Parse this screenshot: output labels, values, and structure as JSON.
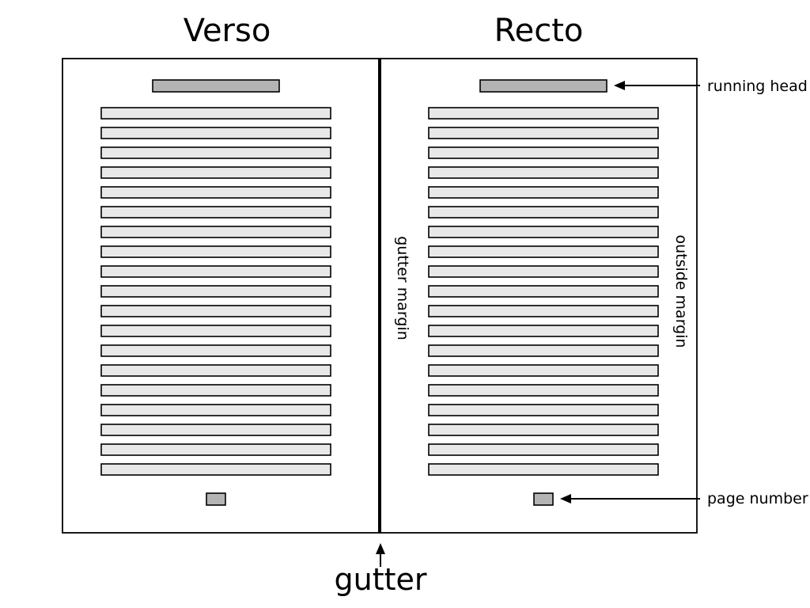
{
  "titles": {
    "verso": "Verso",
    "recto": "Recto"
  },
  "labels": {
    "running_head": "running head",
    "page_number": "page number",
    "gutter_margin": "gutter margin",
    "outside_margin": "outside margin",
    "gutter": "gutter"
  },
  "pages": {
    "text_lines_per_page": 19
  },
  "colors": {
    "text_line_fill": "#e8e8e8",
    "head_fill": "#b4b4b4",
    "stroke": "#000000"
  }
}
